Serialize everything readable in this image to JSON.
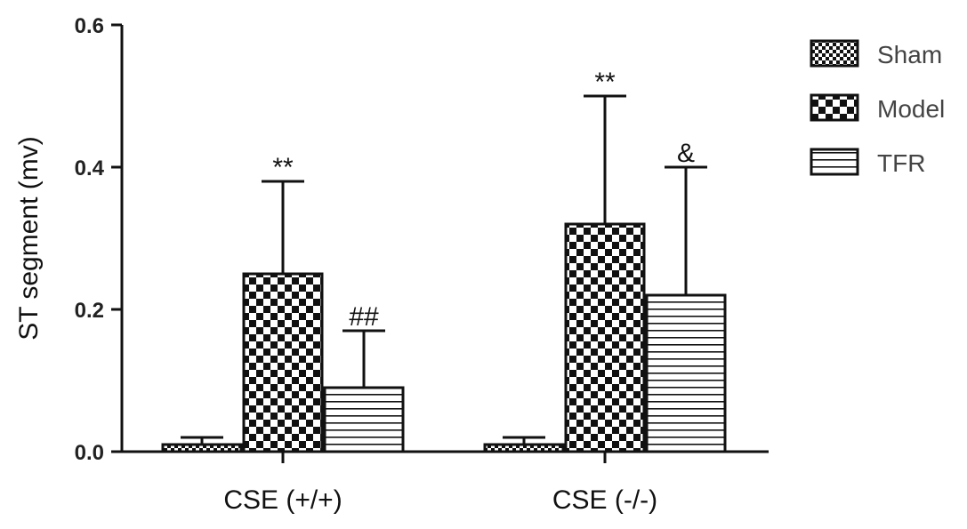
{
  "chart_data": {
    "type": "bar",
    "title": "",
    "xlabel": "",
    "ylabel": "ST segment (mv)",
    "ylim": [
      0,
      0.6
    ],
    "yticks": [
      "0.0",
      "0.2",
      "0.4",
      "0.6"
    ],
    "categories": [
      "CSE (+/+)",
      "CSE (-/-)"
    ],
    "series": [
      {
        "name": "Sham",
        "pattern": "fine-check",
        "values": [
          0.01,
          0.01
        ],
        "errors": [
          0.01,
          0.01
        ],
        "annotations": [
          "",
          ""
        ]
      },
      {
        "name": "Model",
        "pattern": "coarse-check",
        "values": [
          0.25,
          0.32
        ],
        "errors": [
          0.13,
          0.18
        ],
        "annotations": [
          "**",
          "**"
        ]
      },
      {
        "name": "TFR",
        "pattern": "hlines",
        "values": [
          0.09,
          0.22
        ],
        "errors": [
          0.08,
          0.18
        ],
        "annotations": [
          "##",
          "&"
        ]
      }
    ],
    "legend_position": "top-right",
    "grid": false,
    "colors": {
      "stroke": "#111111",
      "fill": "#ffffff"
    }
  }
}
